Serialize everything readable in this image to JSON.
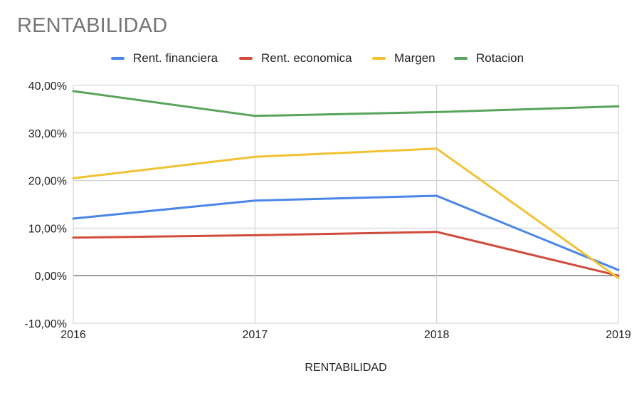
{
  "page_title": "RENTABILIDAD",
  "chart_data": {
    "type": "line",
    "title": "RENTABILIDAD",
    "xlabel": "RENTABILIDAD",
    "ylabel": "",
    "x": [
      "2016",
      "2017",
      "2018",
      "2019"
    ],
    "ylim": [
      -10,
      40
    ],
    "yticks": [
      -10,
      0,
      10,
      20,
      30,
      40
    ],
    "ytick_labels": [
      "-10,00%",
      "0,00%",
      "10,00%",
      "20,00%",
      "30,00%",
      "40,00%"
    ],
    "grid": true,
    "legend_position": "top",
    "series": [
      {
        "name": "Rent. financiera",
        "color": "#4a86e8",
        "values": [
          12.0,
          15.8,
          16.8,
          1.2
        ]
      },
      {
        "name": "Rent. economica",
        "color": "#d14b3c",
        "values": [
          8.0,
          8.5,
          9.2,
          0.0
        ]
      },
      {
        "name": "Margen",
        "color": "#f1c232",
        "values": [
          20.5,
          25.0,
          26.7,
          -0.5
        ]
      },
      {
        "name": "Rotacion",
        "color": "#57a55a",
        "values": [
          38.8,
          33.6,
          34.4,
          35.6
        ]
      }
    ]
  }
}
